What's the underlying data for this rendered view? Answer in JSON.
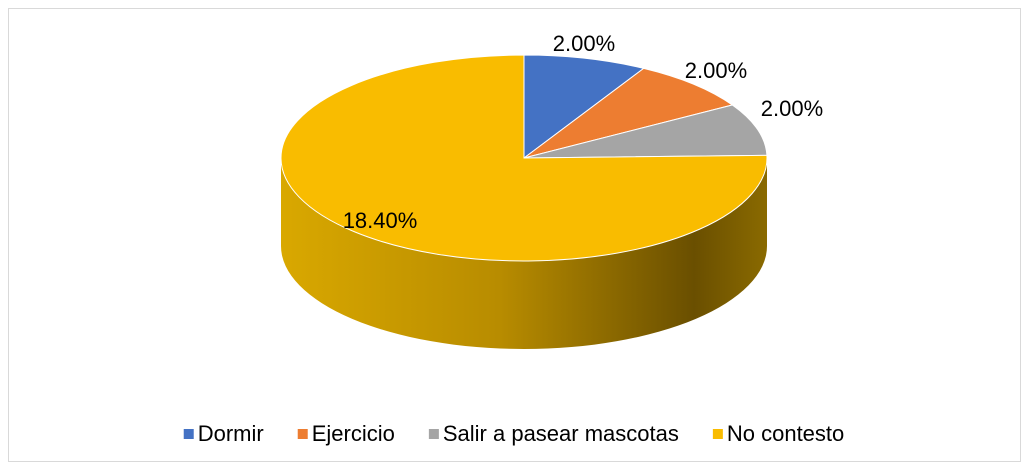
{
  "chart_data": {
    "type": "pie",
    "categories": [
      "Dormir",
      "Ejercicio",
      "Salir a pasear mascotas",
      "No contesto"
    ],
    "values": [
      2,
      2,
      2,
      18.4
    ],
    "value_labels": [
      "2.00%",
      "2.00%",
      "2.00%",
      "18.40%"
    ],
    "colors": [
      "#4472c4",
      "#ed7d31",
      "#a5a5a5",
      "#f9bc00"
    ],
    "legend": "bottom"
  }
}
